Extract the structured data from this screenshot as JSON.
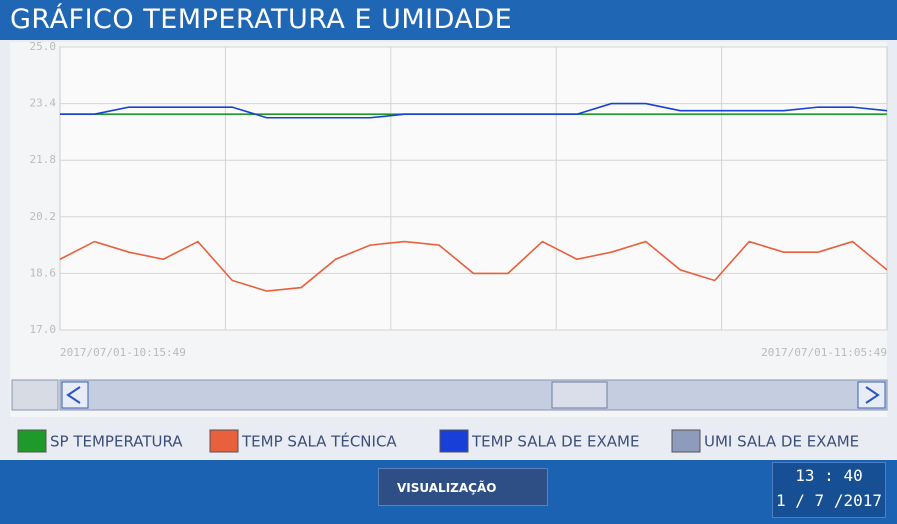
{
  "header": {
    "title": "GRÁFICO TEMPERATURA E UMIDADE"
  },
  "chart_data": {
    "type": "line",
    "categories": [
      "2017/07/01-10:15:49",
      null,
      null,
      null,
      null,
      null,
      null,
      null,
      null,
      null,
      null,
      null,
      null,
      null,
      null,
      null,
      null,
      null,
      null,
      null,
      null,
      null,
      null,
      null,
      "2017/07/01-11:05:49"
    ],
    "series": [
      {
        "name": "SP TEMPERATURA",
        "color": "#1e9a2a",
        "values": [
          23.1,
          23.1,
          23.1,
          23.1,
          23.1,
          23.1,
          23.1,
          23.1,
          23.1,
          23.1,
          23.1,
          23.1,
          23.1,
          23.1,
          23.1,
          23.1,
          23.1,
          23.1,
          23.1,
          23.1,
          23.1,
          23.1,
          23.1,
          23.1,
          23.1
        ]
      },
      {
        "name": "TEMP SALA TÉCNICA",
        "color": "#e8603c",
        "values": [
          19.0,
          19.5,
          19.2,
          19.0,
          19.5,
          18.4,
          18.1,
          18.2,
          19.0,
          19.4,
          19.5,
          19.4,
          18.6,
          18.6,
          19.5,
          19.0,
          19.2,
          19.5,
          18.7,
          18.4,
          19.5,
          19.2,
          19.2,
          19.5,
          18.7
        ]
      },
      {
        "name": "TEMP SALA DE EXAME",
        "color": "#1840d8",
        "values": [
          23.1,
          23.1,
          23.3,
          23.3,
          23.3,
          23.3,
          23.0,
          23.0,
          23.0,
          23.0,
          23.1,
          23.1,
          23.1,
          23.1,
          23.1,
          23.1,
          23.4,
          23.4,
          23.2,
          23.2,
          23.2,
          23.2,
          23.3,
          23.3,
          23.2
        ]
      },
      {
        "name": "UMI SALA DE EXAME",
        "color": "#8f9bbd",
        "values": [
          null,
          null,
          null,
          null,
          null,
          null,
          null,
          null,
          null,
          null,
          null,
          null,
          null,
          null,
          null,
          null,
          null,
          null,
          null,
          null,
          null,
          null,
          null,
          null,
          null
        ]
      }
    ],
    "ylim": [
      17.0,
      25.0
    ],
    "yticks": [
      {
        "value": 17.0,
        "label": "17.0"
      },
      18.6,
      20.2,
      21.8,
      23.4,
      {
        "value": 25.0,
        "label": "25.0"
      }
    ],
    "grid": true
  },
  "footer": {
    "button": "VISUALIZAÇÃO",
    "time": "13 : 40",
    "date": "1 / 7 /2017"
  }
}
